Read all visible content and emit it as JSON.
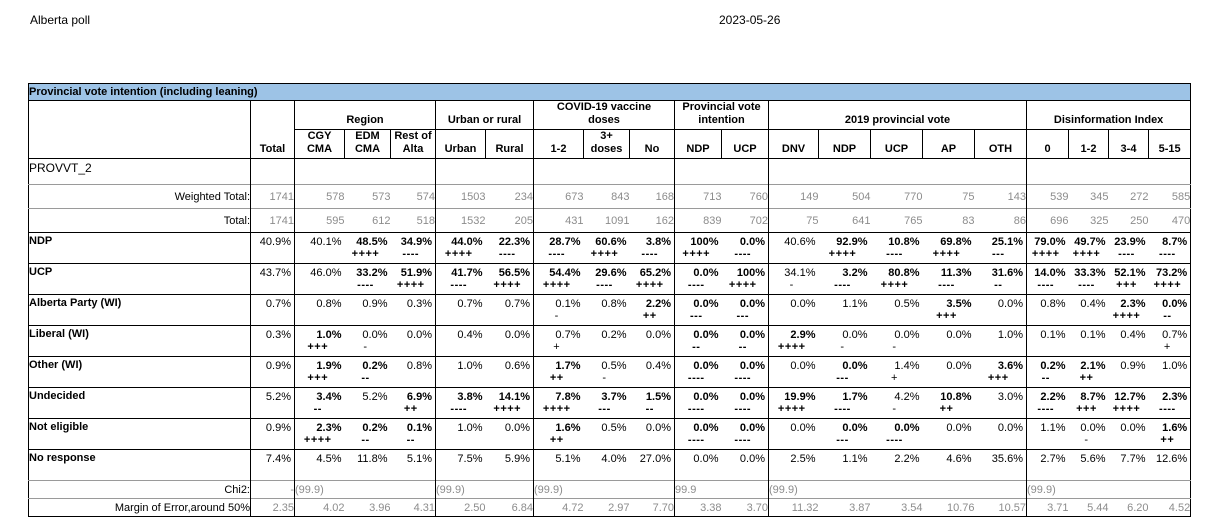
{
  "page": {
    "report_title": "Alberta poll",
    "date": "2023-05-26"
  },
  "colors": {
    "title_bar_bg": "#9dc3e6",
    "muted_text": "#8c8c8c",
    "border": "#000000"
  },
  "table": {
    "title": "Provincial vote intention (including leaning)",
    "variable_label": "PROVVT_2",
    "total_label": "Total",
    "groups": [
      {
        "label": "Region",
        "span": 3
      },
      {
        "label": "Urban or rural",
        "span": 2
      },
      {
        "label": "COVID-19 vaccine doses",
        "span": 3
      },
      {
        "label": "Provincial vote intention",
        "span": 2
      },
      {
        "label": "2019 provincial vote",
        "span": 5
      },
      {
        "label": "Disinformation Index",
        "span": 4
      }
    ],
    "columns": [
      "CGY CMA",
      "EDM CMA",
      "Rest of Alta",
      "Urban",
      "Rural",
      "1-2",
      "3+ doses",
      "No",
      "NDP",
      "UCP",
      "DNV",
      "NDP",
      "UCP",
      "AP",
      "OTH",
      "0",
      "1-2",
      "3-4",
      "5-15"
    ],
    "count_rows": [
      {
        "label": "Weighted Total:",
        "total": "1741",
        "values": [
          "578",
          "573",
          "574",
          "1503",
          "234",
          "673",
          "843",
          "168",
          "713",
          "760",
          "149",
          "504",
          "770",
          "75",
          "143",
          "539",
          "345",
          "272",
          "585"
        ]
      },
      {
        "label": "Total:",
        "total": "1741",
        "values": [
          "595",
          "612",
          "518",
          "1532",
          "205",
          "431",
          "1091",
          "162",
          "839",
          "702",
          "75",
          "641",
          "765",
          "83",
          "86",
          "696",
          "325",
          "250",
          "470"
        ]
      }
    ],
    "data_rows": [
      {
        "label": "NDP",
        "total": "40.9%",
        "cells": [
          [
            "40.1%",
            "",
            0
          ],
          [
            "48.5%",
            "++++",
            1
          ],
          [
            "34.9%",
            "----",
            1
          ],
          [
            "44.0%",
            "++++",
            1
          ],
          [
            "22.3%",
            "----",
            1
          ],
          [
            "28.7%",
            "----",
            1
          ],
          [
            "60.6%",
            "++++",
            1
          ],
          [
            "3.8%",
            "----",
            1
          ],
          [
            "100%",
            "++++",
            1
          ],
          [
            "0.0%",
            "----",
            1
          ],
          [
            "40.6%",
            "",
            0
          ],
          [
            "92.9%",
            "++++",
            1
          ],
          [
            "10.8%",
            "----",
            1
          ],
          [
            "69.8%",
            "++++",
            1
          ],
          [
            "25.1%",
            "---",
            1
          ],
          [
            "79.0%",
            "++++",
            1
          ],
          [
            "49.7%",
            "++++",
            1
          ],
          [
            "23.9%",
            "----",
            1
          ],
          [
            "8.7%",
            "----",
            1
          ]
        ]
      },
      {
        "label": "UCP",
        "total": "43.7%",
        "cells": [
          [
            "46.0%",
            "",
            0
          ],
          [
            "33.2%",
            "----",
            1
          ],
          [
            "51.9%",
            "++++",
            1
          ],
          [
            "41.7%",
            "----",
            1
          ],
          [
            "56.5%",
            "++++",
            1
          ],
          [
            "54.4%",
            "++++",
            1
          ],
          [
            "29.6%",
            "----",
            1
          ],
          [
            "65.2%",
            "++++",
            1
          ],
          [
            "0.0%",
            "----",
            1
          ],
          [
            "100%",
            "++++",
            1
          ],
          [
            "34.1%",
            "-",
            0
          ],
          [
            "3.2%",
            "----",
            1
          ],
          [
            "80.8%",
            "++++",
            1
          ],
          [
            "11.3%",
            "----",
            1
          ],
          [
            "31.6%",
            "--",
            1
          ],
          [
            "14.0%",
            "----",
            1
          ],
          [
            "33.3%",
            "----",
            1
          ],
          [
            "52.1%",
            "+++",
            1
          ],
          [
            "73.2%",
            "++++",
            1
          ]
        ]
      },
      {
        "label": "Alberta Party (WI)",
        "total": "0.7%",
        "cells": [
          [
            "0.8%",
            "",
            0
          ],
          [
            "0.9%",
            "",
            0
          ],
          [
            "0.3%",
            "",
            0
          ],
          [
            "0.7%",
            "",
            0
          ],
          [
            "0.7%",
            "",
            0
          ],
          [
            "0.1%",
            "-",
            0
          ],
          [
            "0.8%",
            "",
            0
          ],
          [
            "2.2%",
            "++",
            1
          ],
          [
            "0.0%",
            "---",
            1
          ],
          [
            "0.0%",
            "---",
            1
          ],
          [
            "0.0%",
            "",
            0
          ],
          [
            "1.1%",
            "",
            0
          ],
          [
            "0.5%",
            "",
            0
          ],
          [
            "3.5%",
            "+++",
            1
          ],
          [
            "0.0%",
            "",
            0
          ],
          [
            "0.8%",
            "",
            0
          ],
          [
            "0.4%",
            "",
            0
          ],
          [
            "2.3%",
            "++++",
            1
          ],
          [
            "0.0%",
            "--",
            1
          ]
        ]
      },
      {
        "label": "Liberal (WI)",
        "total": "0.3%",
        "cells": [
          [
            "1.0%",
            "+++",
            1
          ],
          [
            "0.0%",
            "-",
            0
          ],
          [
            "0.0%",
            "",
            0
          ],
          [
            "0.4%",
            "",
            0
          ],
          [
            "0.0%",
            "",
            0
          ],
          [
            "0.7%",
            "+",
            0
          ],
          [
            "0.2%",
            "",
            0
          ],
          [
            "0.0%",
            "",
            0
          ],
          [
            "0.0%",
            "--",
            1
          ],
          [
            "0.0%",
            "--",
            1
          ],
          [
            "2.9%",
            "++++",
            1
          ],
          [
            "0.0%",
            "-",
            0
          ],
          [
            "0.0%",
            "-",
            0
          ],
          [
            "0.0%",
            "",
            0
          ],
          [
            "1.0%",
            "",
            0
          ],
          [
            "0.1%",
            "",
            0
          ],
          [
            "0.1%",
            "",
            0
          ],
          [
            "0.4%",
            "",
            0
          ],
          [
            "0.7%",
            "+",
            0
          ]
        ]
      },
      {
        "label": "Other (WI)",
        "total": "0.9%",
        "cells": [
          [
            "1.9%",
            "+++",
            1
          ],
          [
            "0.2%",
            "--",
            1
          ],
          [
            "0.8%",
            "",
            0
          ],
          [
            "1.0%",
            "",
            0
          ],
          [
            "0.6%",
            "",
            0
          ],
          [
            "1.7%",
            "++",
            1
          ],
          [
            "0.5%",
            "-",
            0
          ],
          [
            "0.4%",
            "",
            0
          ],
          [
            "0.0%",
            "----",
            1
          ],
          [
            "0.0%",
            "----",
            1
          ],
          [
            "0.0%",
            "",
            0
          ],
          [
            "0.0%",
            "---",
            1
          ],
          [
            "1.4%",
            "+",
            0
          ],
          [
            "0.0%",
            "",
            0
          ],
          [
            "3.6%",
            "+++",
            1
          ],
          [
            "0.2%",
            "--",
            1
          ],
          [
            "2.1%",
            "++",
            1
          ],
          [
            "0.9%",
            "",
            0
          ],
          [
            "1.0%",
            "",
            0
          ]
        ]
      },
      {
        "label": "Undecided",
        "total": "5.2%",
        "cells": [
          [
            "3.4%",
            "--",
            1
          ],
          [
            "5.2%",
            "",
            0
          ],
          [
            "6.9%",
            "++",
            1
          ],
          [
            "3.8%",
            "----",
            1
          ],
          [
            "14.1%",
            "++++",
            1
          ],
          [
            "7.8%",
            "++++",
            1
          ],
          [
            "3.7%",
            "---",
            1
          ],
          [
            "1.5%",
            "--",
            1
          ],
          [
            "0.0%",
            "----",
            1
          ],
          [
            "0.0%",
            "----",
            1
          ],
          [
            "19.9%",
            "++++",
            1
          ],
          [
            "1.7%",
            "----",
            1
          ],
          [
            "4.2%",
            "-",
            0
          ],
          [
            "10.8%",
            "++",
            1
          ],
          [
            "3.0%",
            "",
            0
          ],
          [
            "2.2%",
            "----",
            1
          ],
          [
            "8.7%",
            "+++",
            1
          ],
          [
            "12.7%",
            "++++",
            1
          ],
          [
            "2.3%",
            "----",
            1
          ]
        ]
      },
      {
        "label": "Not eligible",
        "total": "0.9%",
        "cells": [
          [
            "2.3%",
            "++++",
            1
          ],
          [
            "0.2%",
            "--",
            1
          ],
          [
            "0.1%",
            "--",
            1
          ],
          [
            "1.0%",
            "",
            0
          ],
          [
            "0.0%",
            "",
            0
          ],
          [
            "1.6%",
            "++",
            1
          ],
          [
            "0.5%",
            "",
            0
          ],
          [
            "0.0%",
            "",
            0
          ],
          [
            "0.0%",
            "----",
            1
          ],
          [
            "0.0%",
            "----",
            1
          ],
          [
            "0.0%",
            "",
            0
          ],
          [
            "0.0%",
            "---",
            1
          ],
          [
            "0.0%",
            "----",
            1
          ],
          [
            "0.0%",
            "",
            0
          ],
          [
            "0.0%",
            "",
            0
          ],
          [
            "1.1%",
            "",
            0
          ],
          [
            "0.0%",
            "-",
            0
          ],
          [
            "0.0%",
            "",
            0
          ],
          [
            "1.6%",
            "++",
            1
          ]
        ]
      },
      {
        "label": "No response",
        "total": "7.4%",
        "cells": [
          [
            "4.5%",
            "",
            0
          ],
          [
            "11.8%",
            "",
            0
          ],
          [
            "5.1%",
            "",
            0
          ],
          [
            "7.5%",
            "",
            0
          ],
          [
            "5.9%",
            "",
            0
          ],
          [
            "5.1%",
            "",
            0
          ],
          [
            "4.0%",
            "",
            0
          ],
          [
            "27.0%",
            "",
            0
          ],
          [
            "0.0%",
            "",
            0
          ],
          [
            "0.0%",
            "",
            0
          ],
          [
            "2.5%",
            "",
            0
          ],
          [
            "1.1%",
            "",
            0
          ],
          [
            "2.2%",
            "",
            0
          ],
          [
            "4.6%",
            "",
            0
          ],
          [
            "35.6%",
            "",
            0
          ],
          [
            "2.7%",
            "",
            0
          ],
          [
            "5.6%",
            "",
            0
          ],
          [
            "7.7%",
            "",
            0
          ],
          [
            "12.6%",
            "",
            0
          ]
        ]
      }
    ],
    "chi2": {
      "label": "Chi2:",
      "total": "-",
      "groups": [
        "(99.9)",
        "(99.9)",
        "(99.9)",
        "99.9",
        "(99.9)",
        "(99.9)"
      ]
    },
    "moe": {
      "label": "Margin of Error,around 50%",
      "total": "2.35",
      "values": [
        "4.02",
        "3.96",
        "4.31",
        "2.50",
        "6.84",
        "4.72",
        "2.97",
        "7.70",
        "3.38",
        "3.70",
        "11.32",
        "3.87",
        "3.54",
        "10.76",
        "10.57",
        "3.71",
        "5.44",
        "6.20",
        "4.52"
      ]
    }
  }
}
